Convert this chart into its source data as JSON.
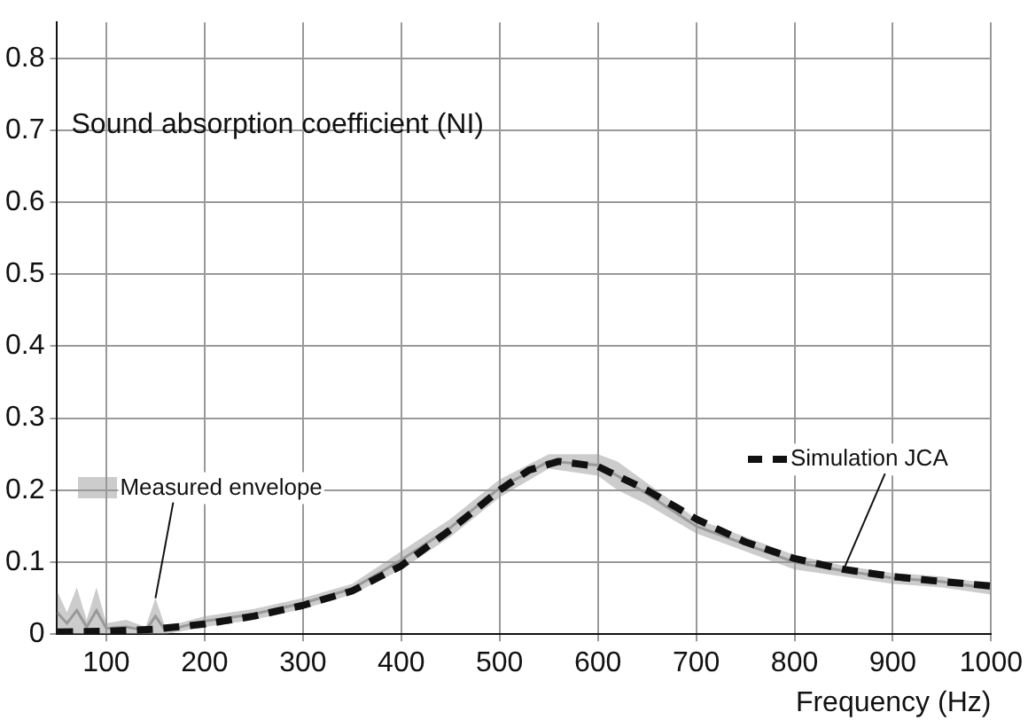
{
  "chart_data": {
    "type": "line",
    "title": "Sound absorption coefficient (NI)",
    "xlabel": "Frequency (Hz)",
    "xlim": [
      50,
      1000
    ],
    "xticks": [
      100,
      200,
      300,
      400,
      500,
      600,
      700,
      800,
      900,
      1000
    ],
    "ylim": [
      0,
      0.85
    ],
    "yticks": [
      0,
      0.1,
      0.2,
      0.3,
      0.4,
      0.5,
      0.6,
      0.7,
      0.8
    ],
    "grid": true,
    "legend": false,
    "series": [
      {
        "type": "line",
        "color": "#999999",
        "x": [
          50,
          60,
          70,
          80,
          90,
          100,
          120,
          140,
          150,
          160,
          200,
          250,
          300,
          350,
          400,
          450,
          500,
          550,
          600,
          620,
          650,
          700,
          750,
          800,
          850,
          900,
          950,
          1000
        ],
        "values": [
          0.03,
          0.015,
          0.033,
          0.01,
          0.033,
          0.008,
          0.01,
          0.005,
          0.025,
          0.005,
          0.018,
          0.028,
          0.043,
          0.063,
          0.103,
          0.148,
          0.203,
          0.24,
          0.235,
          0.22,
          0.195,
          0.15,
          0.125,
          0.1,
          0.088,
          0.078,
          0.073,
          0.063
        ],
        "lower": [
          0,
          0,
          0,
          0,
          0,
          0,
          0,
          0,
          0,
          0,
          0.01,
          0.02,
          0.035,
          0.055,
          0.09,
          0.135,
          0.19,
          0.23,
          0.22,
          0.2,
          0.18,
          0.14,
          0.115,
          0.09,
          0.08,
          0.07,
          0.065,
          0.055
        ],
        "upper": [
          0.06,
          0.03,
          0.065,
          0.02,
          0.065,
          0.015,
          0.02,
          0.01,
          0.05,
          0.01,
          0.025,
          0.035,
          0.05,
          0.07,
          0.115,
          0.16,
          0.215,
          0.25,
          0.25,
          0.24,
          0.21,
          0.16,
          0.135,
          0.11,
          0.095,
          0.085,
          0.08,
          0.07
        ]
      },
      {
        "color": "#111111",
        "line_style": "dashed",
        "x": [
          50,
          100,
          150,
          200,
          250,
          300,
          350,
          400,
          450,
          500,
          530,
          560,
          600,
          650,
          700,
          750,
          800,
          850,
          900,
          950,
          1000
        ],
        "values": [
          0.003,
          0.004,
          0.007,
          0.014,
          0.025,
          0.04,
          0.06,
          0.095,
          0.145,
          0.2,
          0.228,
          0.24,
          0.233,
          0.2,
          0.16,
          0.128,
          0.105,
          0.09,
          0.08,
          0.073,
          0.067
        ]
      }
    ],
    "annotations": [
      {
        "text": "Measured envelope",
        "x": 150,
        "y": 0.05
      },
      {
        "text": "Simulation JCA",
        "x": 850,
        "y": 0.09
      }
    ]
  }
}
